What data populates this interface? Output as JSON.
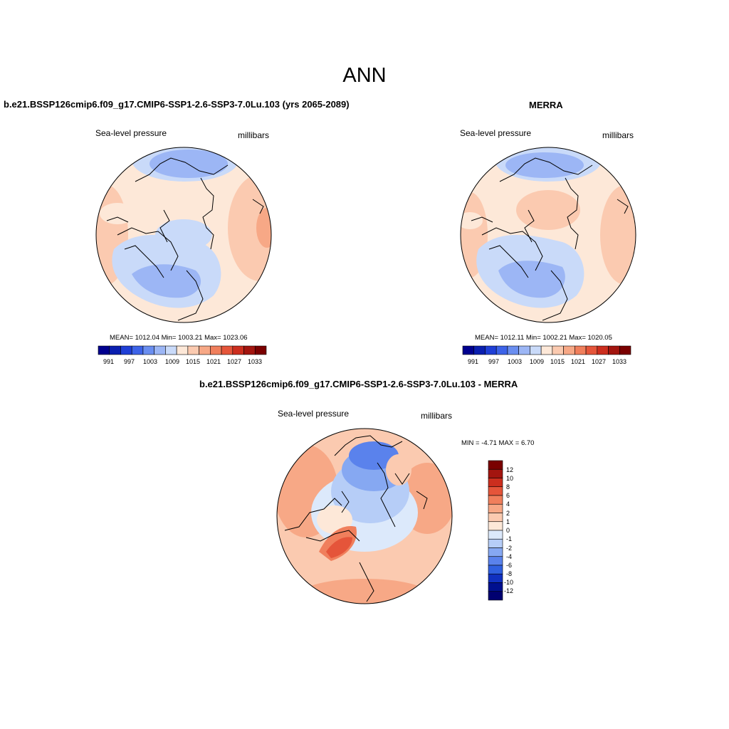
{
  "title": "ANN",
  "panels": [
    {
      "id": "model",
      "title": "b.e21.BSSP126cmip6.f09_g17.CMIP6-SSP1-2.6-SSP3-7.0Lu.103 (yrs 2065-2089)",
      "left_label": "Sea-level pressure",
      "right_label": "millibars",
      "stats": "MEAN= 1012.04  Min= 1003.21  Max= 1023.06",
      "colorbar_ticks": [
        "991",
        "997",
        "1003",
        "1009",
        "1015",
        "1021",
        "1027",
        "1033"
      ]
    },
    {
      "id": "obs",
      "title": "MERRA",
      "left_label": "Sea-level pressure",
      "right_label": "millibars",
      "stats": "MEAN= 1012.11  Min= 1002.21  Max= 1020.05",
      "colorbar_ticks": [
        "991",
        "997",
        "1003",
        "1009",
        "1015",
        "1021",
        "1027",
        "1033"
      ]
    },
    {
      "id": "diff",
      "title": "b.e21.BSSP126cmip6.f09_g17.CMIP6-SSP1-2.6-SSP3-7.0Lu.103 - MERRA",
      "left_label": "Sea-level pressure",
      "right_label": "millibars",
      "stats": "MIN =  -4.71 MAX =   6.70",
      "colorbar_ticks": [
        "12",
        "10",
        "8",
        "6",
        "4",
        "2",
        "1",
        "0",
        "-1",
        "-2",
        "-4",
        "-6",
        "-8",
        "-10",
        "-12"
      ]
    }
  ],
  "colors": {
    "abs_scale": [
      "#00008f",
      "#0a1fb0",
      "#1f3fd6",
      "#3d63e8",
      "#6a8ef0",
      "#9cb6f5",
      "#c9daf9",
      "#fde8d8",
      "#fbcab0",
      "#f7a886",
      "#f07f5c",
      "#e5553a",
      "#cc2e1e",
      "#a3150f",
      "#7a0000"
    ],
    "diff_scale": [
      "#7a0000",
      "#a3150f",
      "#cc2e1e",
      "#e5553a",
      "#f07f5c",
      "#f7a886",
      "#fbcab0",
      "#fde8d8",
      "#dce9fb",
      "#b6cdf7",
      "#86a8f2",
      "#5a82ec",
      "#3060e0",
      "#1030c0",
      "#00108f",
      "#000070"
    ]
  }
}
